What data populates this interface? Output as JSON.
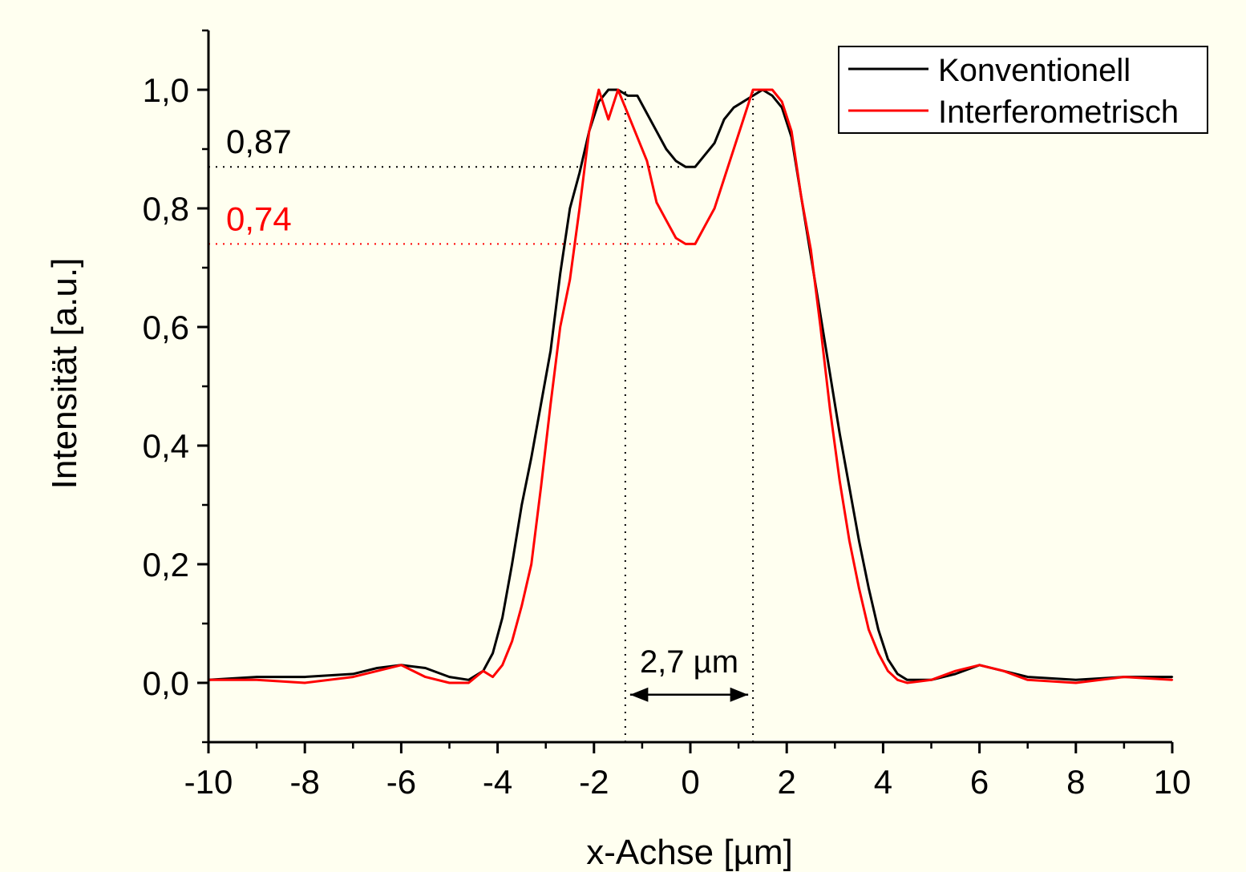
{
  "chart_data": {
    "type": "line",
    "title": "",
    "xlabel": "x-Achse [µm]",
    "ylabel": "Intensität [a.u.]",
    "xlim": [
      -10,
      10
    ],
    "ylim": [
      -0.1,
      1.1
    ],
    "xticks": [
      "-10",
      "-8",
      "-6",
      "-4",
      "-2",
      "0",
      "2",
      "4",
      "6",
      "8",
      "10"
    ],
    "xtick_values": [
      -10,
      -8,
      -6,
      -4,
      -2,
      0,
      2,
      4,
      6,
      8,
      10
    ],
    "yticks": [
      "0,0",
      "0,2",
      "0,4",
      "0,6",
      "0,8",
      "1,0"
    ],
    "ytick_values": [
      0,
      0.2,
      0.4,
      0.6,
      0.8,
      1.0
    ],
    "grid": false,
    "legend_position": "top-right",
    "background": "#fffff0",
    "series": [
      {
        "name": "Konventionell",
        "color": "#000000",
        "x": [
          -10,
          -9,
          -8,
          -7,
          -6.5,
          -6,
          -5.5,
          -5,
          -4.6,
          -4.3,
          -4.1,
          -3.9,
          -3.7,
          -3.5,
          -3.3,
          -3.1,
          -2.9,
          -2.7,
          -2.5,
          -2.3,
          -2.1,
          -1.9,
          -1.7,
          -1.5,
          -1.3,
          -1.1,
          -0.9,
          -0.7,
          -0.5,
          -0.3,
          -0.1,
          0.1,
          0.3,
          0.5,
          0.7,
          0.9,
          1.1,
          1.3,
          1.5,
          1.7,
          1.9,
          2.1,
          2.3,
          2.5,
          2.7,
          2.9,
          3.1,
          3.3,
          3.5,
          3.7,
          3.9,
          4.1,
          4.3,
          4.5,
          5,
          5.5,
          6,
          6.5,
          7,
          8,
          9,
          10
        ],
        "y": [
          0.005,
          0.01,
          0.01,
          0.015,
          0.025,
          0.03,
          0.025,
          0.01,
          0.005,
          0.02,
          0.05,
          0.11,
          0.2,
          0.3,
          0.38,
          0.47,
          0.56,
          0.69,
          0.8,
          0.86,
          0.93,
          0.98,
          1.0,
          1.0,
          0.99,
          0.99,
          0.96,
          0.93,
          0.9,
          0.88,
          0.87,
          0.87,
          0.89,
          0.91,
          0.95,
          0.97,
          0.98,
          0.99,
          1.0,
          0.99,
          0.97,
          0.92,
          0.82,
          0.72,
          0.62,
          0.52,
          0.42,
          0.33,
          0.24,
          0.16,
          0.09,
          0.04,
          0.015,
          0.005,
          0.005,
          0.015,
          0.03,
          0.02,
          0.01,
          0.005,
          0.01,
          0.01
        ]
      },
      {
        "name": "Interferometrisch",
        "color": "#ff0000",
        "x": [
          -10,
          -9,
          -8,
          -7,
          -6.5,
          -6,
          -5.5,
          -5,
          -4.6,
          -4.3,
          -4.1,
          -3.9,
          -3.7,
          -3.5,
          -3.3,
          -3.1,
          -2.9,
          -2.7,
          -2.5,
          -2.3,
          -2.1,
          -1.9,
          -1.7,
          -1.5,
          -1.3,
          -1.1,
          -0.9,
          -0.7,
          -0.5,
          -0.3,
          -0.1,
          0.1,
          0.3,
          0.5,
          0.7,
          0.9,
          1.1,
          1.3,
          1.5,
          1.7,
          1.9,
          2.1,
          2.3,
          2.5,
          2.7,
          2.9,
          3.1,
          3.3,
          3.5,
          3.7,
          3.9,
          4.1,
          4.3,
          4.5,
          5,
          5.5,
          6,
          6.5,
          7,
          8,
          9,
          10
        ],
        "y": [
          0.005,
          0.005,
          0.0,
          0.01,
          0.02,
          0.03,
          0.01,
          0.0,
          0.0,
          0.02,
          0.01,
          0.03,
          0.07,
          0.13,
          0.2,
          0.33,
          0.47,
          0.6,
          0.68,
          0.8,
          0.93,
          1.0,
          0.95,
          1.0,
          0.96,
          0.92,
          0.88,
          0.81,
          0.78,
          0.75,
          0.74,
          0.74,
          0.77,
          0.8,
          0.85,
          0.9,
          0.95,
          1.0,
          1.0,
          1.0,
          0.98,
          0.93,
          0.82,
          0.73,
          0.6,
          0.46,
          0.34,
          0.24,
          0.16,
          0.09,
          0.05,
          0.02,
          0.005,
          0.0,
          0.005,
          0.02,
          0.03,
          0.02,
          0.005,
          0.0,
          0.01,
          0.005
        ]
      }
    ],
    "annotations": [
      {
        "type": "hline",
        "y": 0.87,
        "x_from": -10,
        "x_to": 0,
        "color": "#000000",
        "label": "0,87",
        "style": "dotted"
      },
      {
        "type": "hline",
        "y": 0.74,
        "x_from": -10,
        "x_to": -0.2,
        "color": "#ff0000",
        "label": "0,74",
        "style": "dotted"
      },
      {
        "type": "vline",
        "x": -1.35,
        "y_from": -0.1,
        "y_to": 1.0,
        "color": "#000000",
        "style": "dotted"
      },
      {
        "type": "vline",
        "x": 1.3,
        "y_from": -0.1,
        "y_to": 1.0,
        "color": "#000000",
        "style": "dotted"
      },
      {
        "type": "arrow",
        "x_from": -1.25,
        "x_to": 1.2,
        "y": -0.02,
        "color": "#000000",
        "label": "2,7 µm"
      }
    ]
  }
}
